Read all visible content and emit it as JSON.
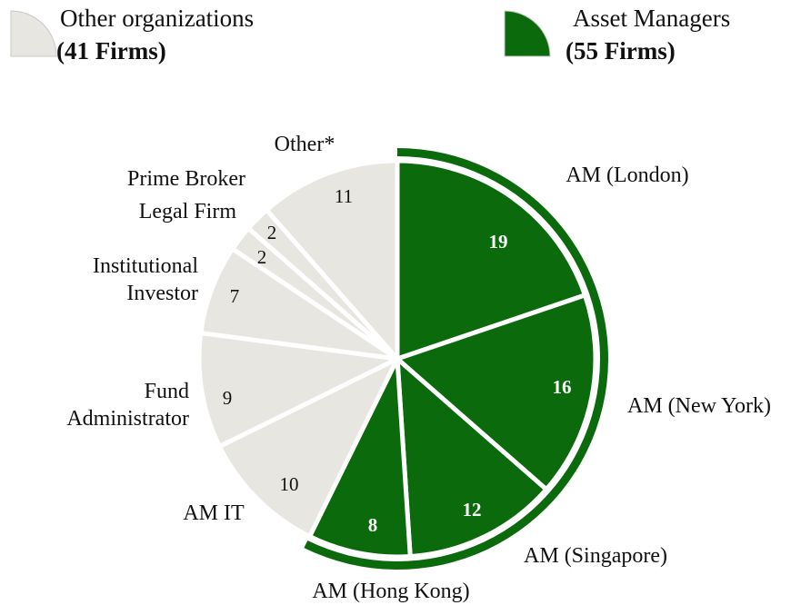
{
  "chart_data": {
    "type": "pie",
    "legend": [
      {
        "name": "Other organizations",
        "count_label": "(41 Firms)",
        "color": "#e8e6e1"
      },
      {
        "name": "Asset Managers",
        "count_label": "(55 Firms)",
        "color": "#0b6a0b"
      }
    ],
    "categories": [
      "AM (London)",
      "AM (New York)",
      "AM (Singapore)",
      "AM (Hong Kong)",
      "AM IT",
      "Fund Administrator",
      "Institutional Investor",
      "Legal Firm",
      "Prime Broker",
      "Other*"
    ],
    "values": [
      19,
      16,
      12,
      8,
      10,
      9,
      7,
      2,
      2,
      11
    ],
    "colors": [
      "#0b6a0b",
      "#0b6a0b",
      "#0b6a0b",
      "#0b6a0b",
      "#e8e6e1",
      "#e8e6e1",
      "#e8e6e1",
      "#e8e6e1",
      "#e8e6e1",
      "#e8e6e1"
    ]
  }
}
